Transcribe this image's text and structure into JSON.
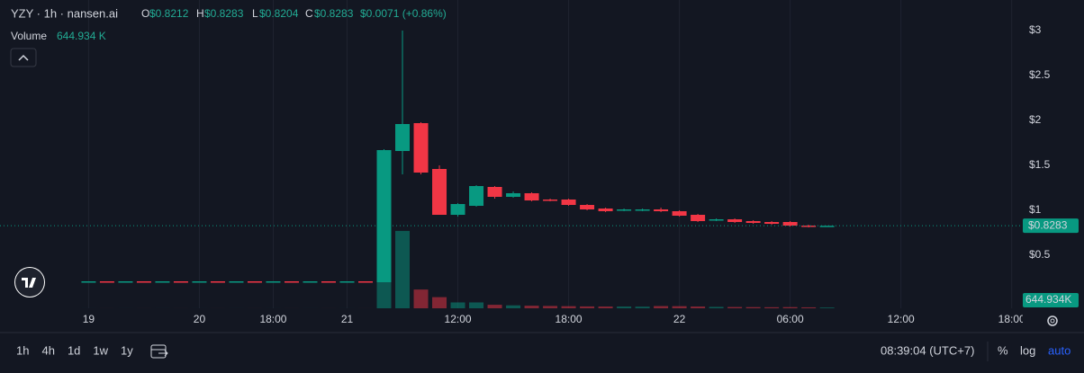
{
  "header": {
    "symbol": "YZY · 1h · nansen.ai",
    "o_key": "O",
    "o": "$0.8212",
    "h_key": "H",
    "h": "$0.8283",
    "l_key": "L",
    "l": "$0.8204",
    "c_key": "C",
    "c": "$0.8283",
    "change": "$0.0071 (+0.86%)",
    "volume_key": "Volume",
    "volume": "644.934 K"
  },
  "toolbar": {
    "ranges": [
      "1h",
      "4h",
      "1d",
      "1w",
      "1y"
    ],
    "clock": "08:39:04 (UTC+7)",
    "percent": "%",
    "log": "log",
    "auto": "auto"
  },
  "chart_data": {
    "type": "candlestick",
    "up_color": "#089981",
    "down_color": "#f23645",
    "grid": true,
    "x": [
      0,
      1,
      2,
      3,
      4,
      5,
      6,
      7,
      8,
      9,
      10,
      11,
      12,
      13,
      14,
      15,
      16,
      17,
      18,
      19,
      20,
      21,
      22,
      23,
      24,
      25,
      26,
      27,
      28,
      29,
      30,
      31,
      32,
      33,
      34,
      35,
      36,
      37,
      38,
      39,
      40
    ],
    "open": [
      0.2,
      0.21,
      0.2,
      0.21,
      0.2,
      0.21,
      0.2,
      0.21,
      0.2,
      0.21,
      0.2,
      0.21,
      0.2,
      0.21,
      0.2,
      0.21,
      0.2,
      1.66,
      1.97,
      1.46,
      0.95,
      1.05,
      1.26,
      1.15,
      1.19,
      1.12,
      1.12,
      1.06,
      1.02,
      1.0,
      1.0,
      1.01,
      0.99,
      0.95,
      0.89,
      0.9,
      0.88,
      0.87,
      0.87,
      0.83,
      0.8212
    ],
    "high": [
      0.21,
      0.21,
      0.21,
      0.21,
      0.21,
      0.21,
      0.21,
      0.21,
      0.21,
      0.21,
      0.21,
      0.21,
      0.21,
      0.21,
      0.21,
      0.21,
      1.68,
      3.0,
      1.98,
      1.5,
      1.08,
      1.28,
      1.27,
      1.21,
      1.2,
      1.13,
      1.13,
      1.07,
      1.03,
      1.02,
      1.02,
      1.03,
      1.0,
      0.96,
      0.91,
      0.91,
      0.89,
      0.88,
      0.88,
      0.84,
      0.8283
    ],
    "low": [
      0.2,
      0.2,
      0.2,
      0.2,
      0.2,
      0.2,
      0.2,
      0.2,
      0.2,
      0.2,
      0.2,
      0.2,
      0.2,
      0.2,
      0.2,
      0.2,
      0.2,
      1.4,
      1.4,
      0.95,
      0.93,
      1.04,
      1.13,
      1.14,
      1.1,
      1.1,
      1.05,
      1.0,
      0.98,
      0.99,
      0.99,
      0.98,
      0.93,
      0.87,
      0.88,
      0.86,
      0.85,
      0.84,
      0.82,
      0.81,
      0.8204
    ],
    "close": [
      0.21,
      0.2,
      0.21,
      0.2,
      0.21,
      0.2,
      0.21,
      0.2,
      0.21,
      0.2,
      0.21,
      0.2,
      0.21,
      0.2,
      0.21,
      0.2,
      1.67,
      1.96,
      1.42,
      0.95,
      1.07,
      1.27,
      1.15,
      1.19,
      1.11,
      1.11,
      1.06,
      1.01,
      0.99,
      1.01,
      1.01,
      0.99,
      0.94,
      0.88,
      0.9,
      0.87,
      0.86,
      0.85,
      0.83,
      0.82,
      0.8283
    ],
    "volume": [
      20,
      20,
      20,
      20,
      20,
      20,
      20,
      20,
      20,
      20,
      20,
      20,
      20,
      20,
      20,
      20,
      35000,
      66000,
      16000,
      9500,
      5000,
      5000,
      3000,
      2500,
      2200,
      2000,
      1800,
      1600,
      1500,
      1500,
      1400,
      1900,
      1800,
      1500,
      1200,
      1100,
      1000,
      900,
      1000,
      800,
      644.934
    ],
    "volume_tag": "644.934K",
    "last_price": {
      "value": 0.8283,
      "label": "$0.8283"
    },
    "xlim": [
      -4.8,
      50.6
    ],
    "ylim": [
      -0.09,
      3.34
    ],
    "volume_lim": [
      0,
      263000
    ],
    "xticks": [
      {
        "value": 0,
        "label": "19"
      },
      {
        "value": 6,
        "label": "20"
      },
      {
        "value": 10,
        "label": "18:00"
      },
      {
        "value": 14,
        "label": "21"
      },
      {
        "value": 20,
        "label": "12:00"
      },
      {
        "value": 26,
        "label": "18:00"
      },
      {
        "value": 32,
        "label": "22"
      },
      {
        "value": 38,
        "label": "06:00"
      },
      {
        "value": 44,
        "label": "12:00"
      },
      {
        "value": 50,
        "label": "18:00"
      }
    ],
    "yticks": [
      {
        "value": 0.5,
        "label": "$0.5"
      },
      {
        "value": 1,
        "label": "$1"
      },
      {
        "value": 1.5,
        "label": "$1.5"
      },
      {
        "value": 2,
        "label": "$2"
      },
      {
        "value": 2.5,
        "label": "$2.5"
      },
      {
        "value": 3,
        "label": "$3"
      }
    ]
  }
}
